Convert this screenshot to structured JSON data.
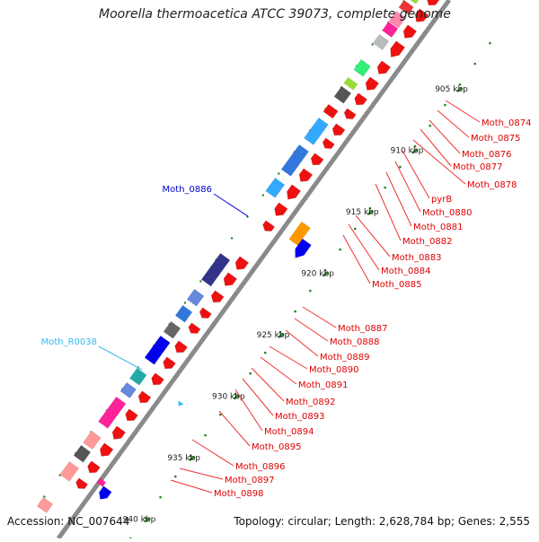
{
  "title": "Moorella thermoacetica ATCC 39073, complete genome",
  "footer": {
    "accession": "Accession: NC_007644",
    "topology": "Topology: circular; Length: 2,628,784 bp; Genes: 2,555"
  },
  "scale_labels": [
    "905 kbp",
    "910 kbp",
    "915 kbp",
    "920 kbp",
    "925 kbp",
    "930 kbp",
    "935 kbp",
    "940 kbp"
  ],
  "left_labels": [
    {
      "text": "Moth_0886",
      "color": "#0000cc"
    },
    {
      "text": "Moth_R0038",
      "color": "#33bbee"
    }
  ],
  "right_labels": [
    "Moth_0874",
    "Moth_0875",
    "Moth_0876",
    "Moth_0877",
    "Moth_0878",
    "pyrB",
    "Moth_0880",
    "Moth_0881",
    "Moth_0882",
    "Moth_0883",
    "Moth_0884",
    "Moth_0885",
    "Moth_0887",
    "Moth_0888",
    "Moth_0889",
    "Moth_0890",
    "Moth_0891",
    "Moth_0892",
    "Moth_0893",
    "Moth_0894",
    "Moth_0895",
    "Moth_0896",
    "Moth_0897",
    "Moth_0898"
  ],
  "colors": {
    "forward_gene": "#ee1111",
    "label_red": "#dd0000",
    "backbone": "#888888",
    "tick": "#228822",
    "cog_blue": "#0000ee",
    "cog_light_blue": "#33aaff",
    "cog_orange": "#ff9900",
    "cog_dark_purple": "#333388",
    "cog_pink": "#ff2299",
    "cog_green": "#33ee77",
    "cog_gray": "#555555"
  }
}
